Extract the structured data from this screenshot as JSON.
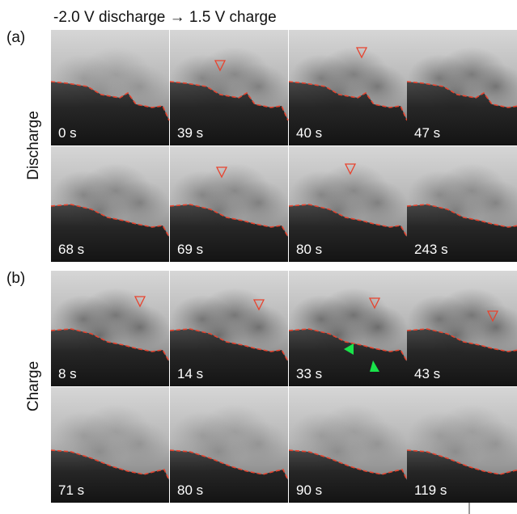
{
  "title": "-2.0 V discharge → 1.5 V charge",
  "sections": [
    {
      "label": "(a)",
      "name": "Discharge",
      "frames": [
        "0 s",
        "39 s",
        "40 s",
        "47 s",
        "68 s",
        "69 s",
        "80 s",
        "243 s"
      ]
    },
    {
      "label": "(b)",
      "name": "Charge",
      "frames": [
        "8 s",
        "14 s",
        "33 s",
        "43 s",
        "71 s",
        "80 s",
        "90 s",
        "119 s"
      ]
    }
  ]
}
